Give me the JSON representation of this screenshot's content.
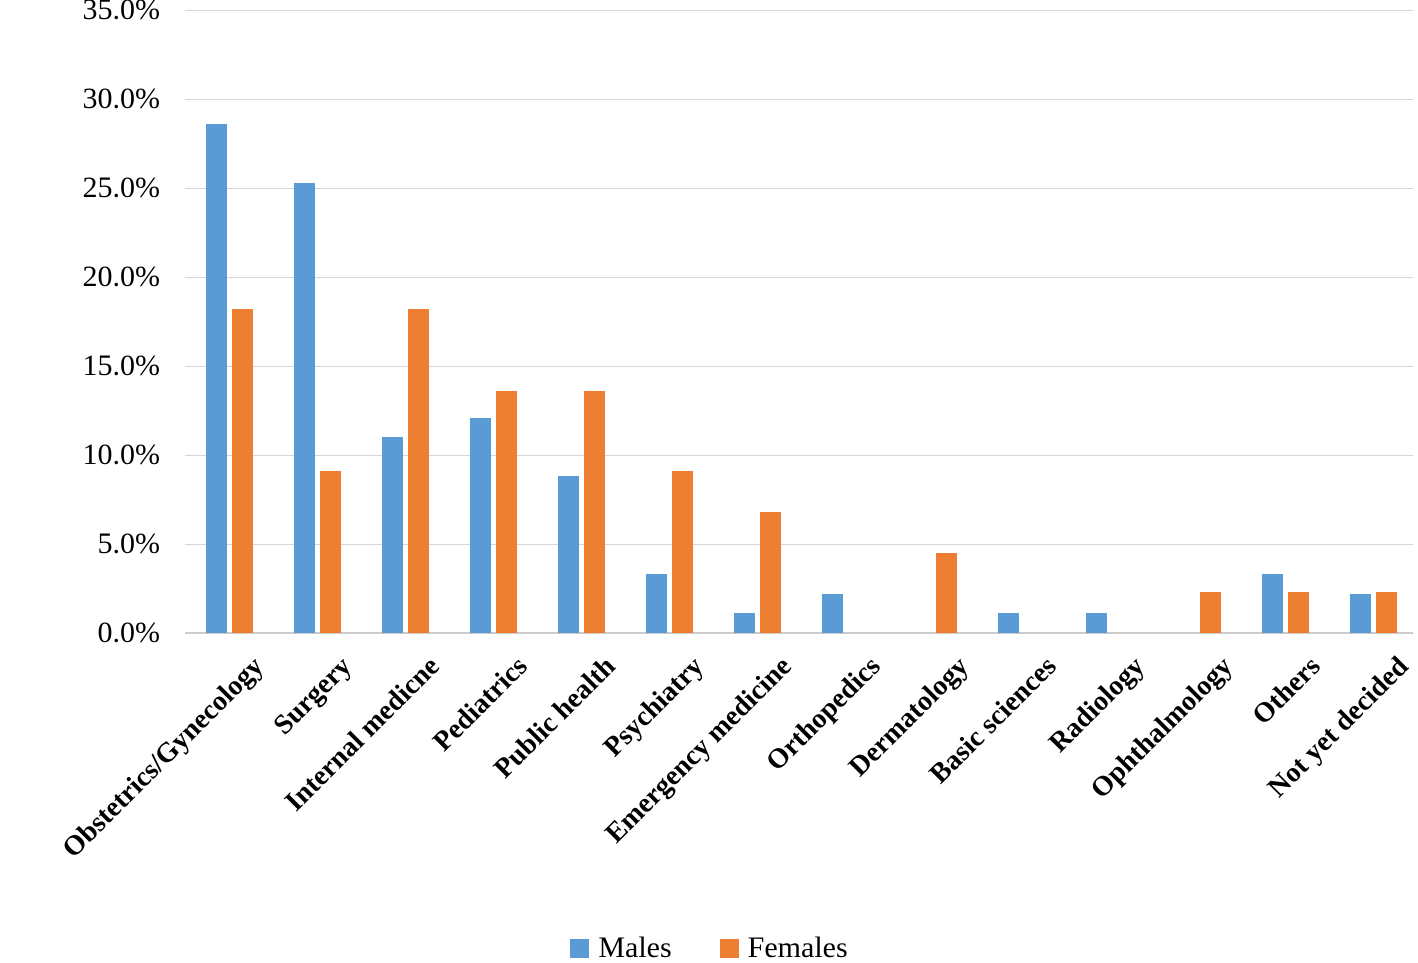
{
  "chart_data": {
    "type": "bar",
    "title": "",
    "xlabel": "",
    "ylabel": "",
    "categories": [
      "Obstetrics/Gynecology",
      "Surgery",
      "Internal medicne",
      "Pediatrics",
      "Public health",
      "Psychiatry",
      "Emergency medicine",
      "Orthopedics",
      "Dermatology",
      "Basic sciences",
      "Radiology",
      "Ophthalmology",
      "Others",
      "Not yet decided"
    ],
    "series": [
      {
        "name": "Males",
        "color": "#5B9BD5",
        "values": [
          28.6,
          25.3,
          11.0,
          12.1,
          8.8,
          3.3,
          1.1,
          2.2,
          0,
          1.1,
          1.1,
          0,
          3.3,
          2.2
        ]
      },
      {
        "name": "Females",
        "color": "#ED7D31",
        "values": [
          18.2,
          9.1,
          18.2,
          13.6,
          13.6,
          9.1,
          6.8,
          0,
          4.5,
          0,
          0,
          2.3,
          2.3,
          2.3
        ]
      }
    ],
    "ylim": [
      0,
      35
    ],
    "ytick_step": 5,
    "ytick_labels": [
      "0.0%",
      "5.0%",
      "10.0%",
      "15.0%",
      "20.0%",
      "25.0%",
      "30.0%",
      "35.0%"
    ],
    "grid": true,
    "gridline_color": "#d6d6d6",
    "legend_position": "bottom"
  }
}
